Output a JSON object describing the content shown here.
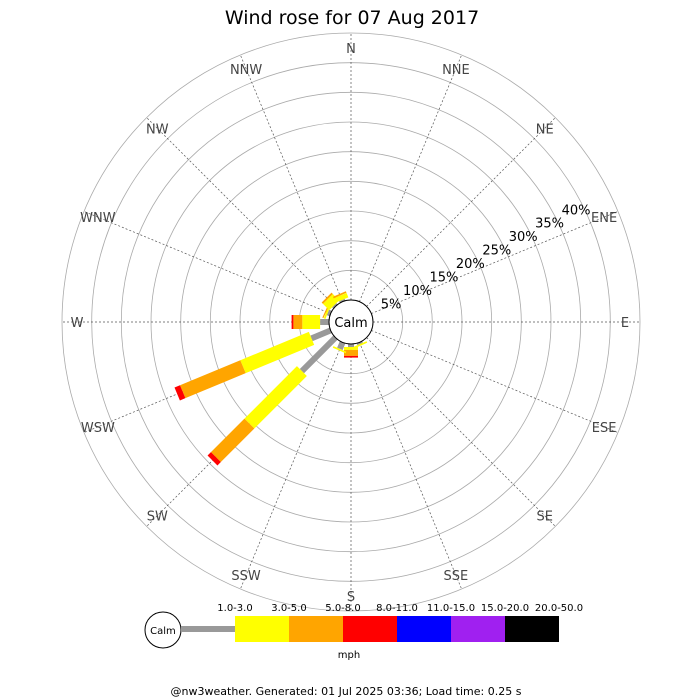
{
  "chart_data": {
    "type": "wind-rose",
    "title": "Wind rose for 07 Aug 2017",
    "directions": [
      "N",
      "NNE",
      "NE",
      "ENE",
      "E",
      "ESE",
      "SE",
      "SSE",
      "S",
      "SSW",
      "SW",
      "WSW",
      "W",
      "WNW",
      "NW",
      "NNW"
    ],
    "ring_labels": [
      "5%",
      "10%",
      "15%",
      "20%",
      "25%",
      "30%",
      "35%",
      "40%"
    ],
    "rmax": 45,
    "calm_label": "Calm",
    "speed_bins": [
      {
        "range": "1.0-3.0",
        "color": "#999999"
      },
      {
        "range": "3.0-5.0",
        "color": "#ffff00"
      },
      {
        "range": "5.0-8.0",
        "color": "#ffa500"
      },
      {
        "range": "8.0-11.0",
        "color": "#ff0000"
      },
      {
        "range": "11.0-15.0",
        "color": "#0000ff"
      },
      {
        "range": "15.0-20.0",
        "color": "#a020f0"
      },
      {
        "range": "20.0-50.0",
        "color": "#000000"
      }
    ],
    "units": "mph",
    "series": [
      {
        "direction": "SSE",
        "values": [
          0.3,
          0.3,
          0,
          0,
          0,
          0,
          0
        ]
      },
      {
        "direction": "S",
        "values": [
          0.5,
          0.5,
          1.0,
          0.3,
          0,
          0,
          0
        ]
      },
      {
        "direction": "SSW",
        "values": [
          1.2,
          0.3,
          0,
          0,
          0,
          0,
          0
        ]
      },
      {
        "direction": "SW",
        "values": [
          8.0,
          12.5,
          8.0,
          0.8,
          0,
          0,
          0
        ]
      },
      {
        "direction": "WSW",
        "values": [
          3.5,
          12.5,
          11.0,
          1.0,
          0,
          0,
          0
        ]
      },
      {
        "direction": "W",
        "values": [
          1.5,
          3.0,
          1.5,
          0.3,
          0,
          0,
          0
        ]
      },
      {
        "direction": "WNW",
        "values": [
          0.5,
          0.3,
          0.2,
          0,
          0,
          0,
          0
        ]
      },
      {
        "direction": "NW",
        "values": [
          0.3,
          1.5,
          0.3,
          0,
          0,
          0,
          0
        ]
      },
      {
        "direction": "NNW",
        "values": [
          0.3,
          0.8,
          0.3,
          0,
          0,
          0,
          0
        ]
      }
    ]
  },
  "footer": "@nw3weather. Generated: 01 Jul 2025 03:36; Load time: 0.25 s"
}
